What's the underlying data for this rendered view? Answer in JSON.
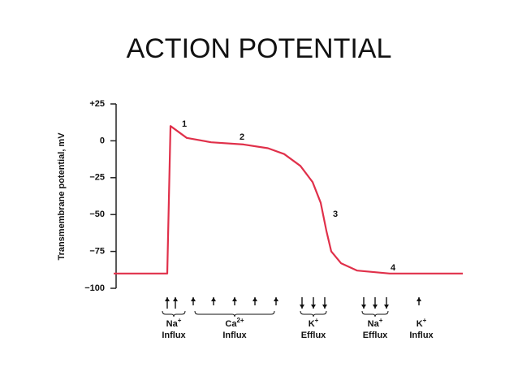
{
  "chart_data": {
    "type": "line",
    "title": "ACTION POTENTIAL",
    "ylabel": "Transmembrane potential, mV",
    "color": "#e0304a",
    "x": [
      0,
      66,
      70,
      90,
      120,
      160,
      190,
      210,
      230,
      245,
      255,
      262,
      268,
      280,
      300,
      340,
      430
    ],
    "values": [
      -90,
      -90,
      10,
      2,
      -1,
      -2.5,
      -5,
      -9,
      -17,
      -28,
      -42,
      -61,
      -75,
      -83,
      -88,
      -90,
      -90
    ],
    "xlim": [
      0,
      430
    ],
    "ylim": [
      -100,
      25
    ],
    "yticks": [
      {
        "value": 25,
        "label": "+25"
      },
      0,
      {
        "value": -25,
        "label": "−25"
      },
      {
        "value": -50,
        "label": "−50"
      },
      {
        "value": -75,
        "label": "−75"
      },
      {
        "value": -100,
        "label": "−100"
      }
    ],
    "annotations": [
      "1",
      "2",
      "3",
      "4"
    ],
    "ions": [
      {
        "ion": "Na",
        "charge": "+",
        "flux": "Influx"
      },
      {
        "ion": "Ca",
        "charge": "2+",
        "flux": "Influx"
      },
      {
        "ion": "K",
        "charge": "+",
        "flux": "Efflux"
      },
      {
        "ion": "Na",
        "charge": "+",
        "flux": "Efflux"
      },
      {
        "ion": "K",
        "charge": "+",
        "flux": "Influx"
      }
    ]
  }
}
